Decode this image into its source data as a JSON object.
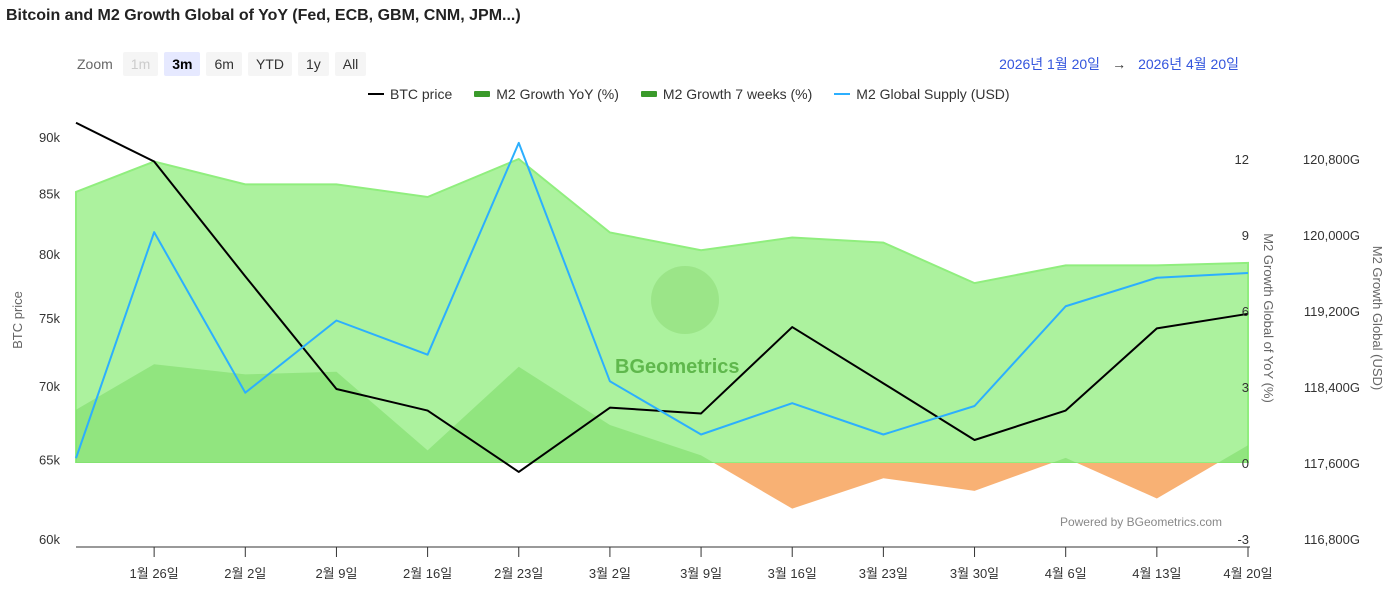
{
  "title": "Bitcoin and M2 Growth Global of YoY (Fed, ECB, GBM, CNM, JPM...)",
  "zoom": {
    "label": "Zoom",
    "buttons": [
      {
        "label": "1m",
        "state": "disabled"
      },
      {
        "label": "3m",
        "state": "active"
      },
      {
        "label": "6m",
        "state": "normal"
      },
      {
        "label": "YTD",
        "state": "normal"
      },
      {
        "label": "1y",
        "state": "normal"
      },
      {
        "label": "All",
        "state": "normal"
      }
    ]
  },
  "range": {
    "from": "2026년 1월 20일",
    "arrow": "→",
    "to": "2026년 4월 20일"
  },
  "credit": "Powered by BGeometrics.com",
  "watermark": "BGeometrics",
  "colors": {
    "btc": "#000000",
    "yoy": "#90ee7e",
    "seven": "#7fdc6a",
    "negative": "#f7a35c",
    "supply": "#2caffe",
    "range": "#3355dd"
  },
  "chart_data": {
    "type": "line",
    "title": "Bitcoin and M2 Growth Global of YoY (Fed, ECB, GBM, CNM, JPM...)",
    "x_days": [
      0,
      6,
      13,
      20,
      27,
      34,
      41,
      48,
      55,
      62,
      69,
      76,
      83,
      90
    ],
    "x_range_days": [
      0,
      90
    ],
    "x_ticks": [
      {
        "day": 6,
        "label": "1월 26일"
      },
      {
        "day": 13,
        "label": "2월 2일"
      },
      {
        "day": 20,
        "label": "2월 9일"
      },
      {
        "day": 27,
        "label": "2월 16일"
      },
      {
        "day": 34,
        "label": "2월 23일"
      },
      {
        "day": 41,
        "label": "3월 2일"
      },
      {
        "day": 48,
        "label": "3월 9일"
      },
      {
        "day": 55,
        "label": "3월 16일"
      },
      {
        "day": 62,
        "label": "3월 23일"
      },
      {
        "day": 69,
        "label": "3월 30일"
      },
      {
        "day": 76,
        "label": "4월 6일"
      },
      {
        "day": 83,
        "label": "4월 13일"
      },
      {
        "day": 90,
        "label": "4월 20일"
      }
    ],
    "axes": {
      "btc": {
        "label": "BTC price",
        "scale": "log",
        "range": [
          60000,
          90000
        ],
        "ticks": [
          {
            "v": 60000,
            "label": "60k"
          },
          {
            "v": 65000,
            "label": "65k"
          },
          {
            "v": 70000,
            "label": "70k"
          },
          {
            "v": 75000,
            "label": "75k"
          },
          {
            "v": 80000,
            "label": "80k"
          },
          {
            "v": 85000,
            "label": "85k"
          },
          {
            "v": 90000,
            "label": "90k"
          }
        ]
      },
      "pct": {
        "label": "M2 Growth Global of YoY (%)",
        "range": [
          -3,
          12
        ],
        "ticks": [
          {
            "v": -3,
            "label": "-3"
          },
          {
            "v": 0,
            "label": "0"
          },
          {
            "v": 3,
            "label": "3"
          },
          {
            "v": 6,
            "label": "6"
          },
          {
            "v": 9,
            "label": "9"
          },
          {
            "v": 12,
            "label": "12"
          }
        ]
      },
      "usd": {
        "label": "M2 Growth Global (USD)",
        "range": [
          116800,
          120800
        ],
        "ticks": [
          {
            "v": 116800,
            "label": "116,800G"
          },
          {
            "v": 117600,
            "label": "117,600G"
          },
          {
            "v": 118400,
            "label": "118,400G"
          },
          {
            "v": 119200,
            "label": "119,200G"
          },
          {
            "v": 120000,
            "label": "120,000G"
          },
          {
            "v": 120800,
            "label": "120,800G"
          }
        ]
      }
    },
    "series": [
      {
        "name": "M2 Growth YoY (%)",
        "type": "area",
        "axis": "pct",
        "values": [
          10.7,
          11.9,
          11.0,
          11.0,
          10.5,
          12.0,
          9.1,
          8.4,
          8.9,
          8.7,
          7.1,
          7.8,
          7.8,
          7.9
        ]
      },
      {
        "name": "M2 Growth 7 weeks (%)",
        "type": "area",
        "axis": "pct",
        "values": [
          2.1,
          3.9,
          3.5,
          3.6,
          0.5,
          3.8,
          1.5,
          0.3,
          -1.8,
          -0.6,
          -1.1,
          0.2,
          -1.4,
          0.7
        ]
      },
      {
        "name": "BTC price",
        "type": "line",
        "axis": "btc",
        "values": [
          91300,
          87800,
          78200,
          69800,
          68300,
          64200,
          68500,
          68100,
          74300,
          70200,
          66300,
          68300,
          74200,
          75300
        ]
      },
      {
        "name": "M2 Global Supply (USD)",
        "type": "line",
        "axis": "usd",
        "values": [
          117650,
          120030,
          118340,
          119100,
          118740,
          120970,
          118460,
          117900,
          118230,
          117900,
          118200,
          119250,
          119550,
          119600
        ]
      }
    ],
    "legend_order": [
      "BTC price",
      "M2 Growth YoY (%)",
      "M2 Growth 7 weeks (%)",
      "M2 Global Supply (USD)"
    ],
    "legend_position": "top-center"
  }
}
